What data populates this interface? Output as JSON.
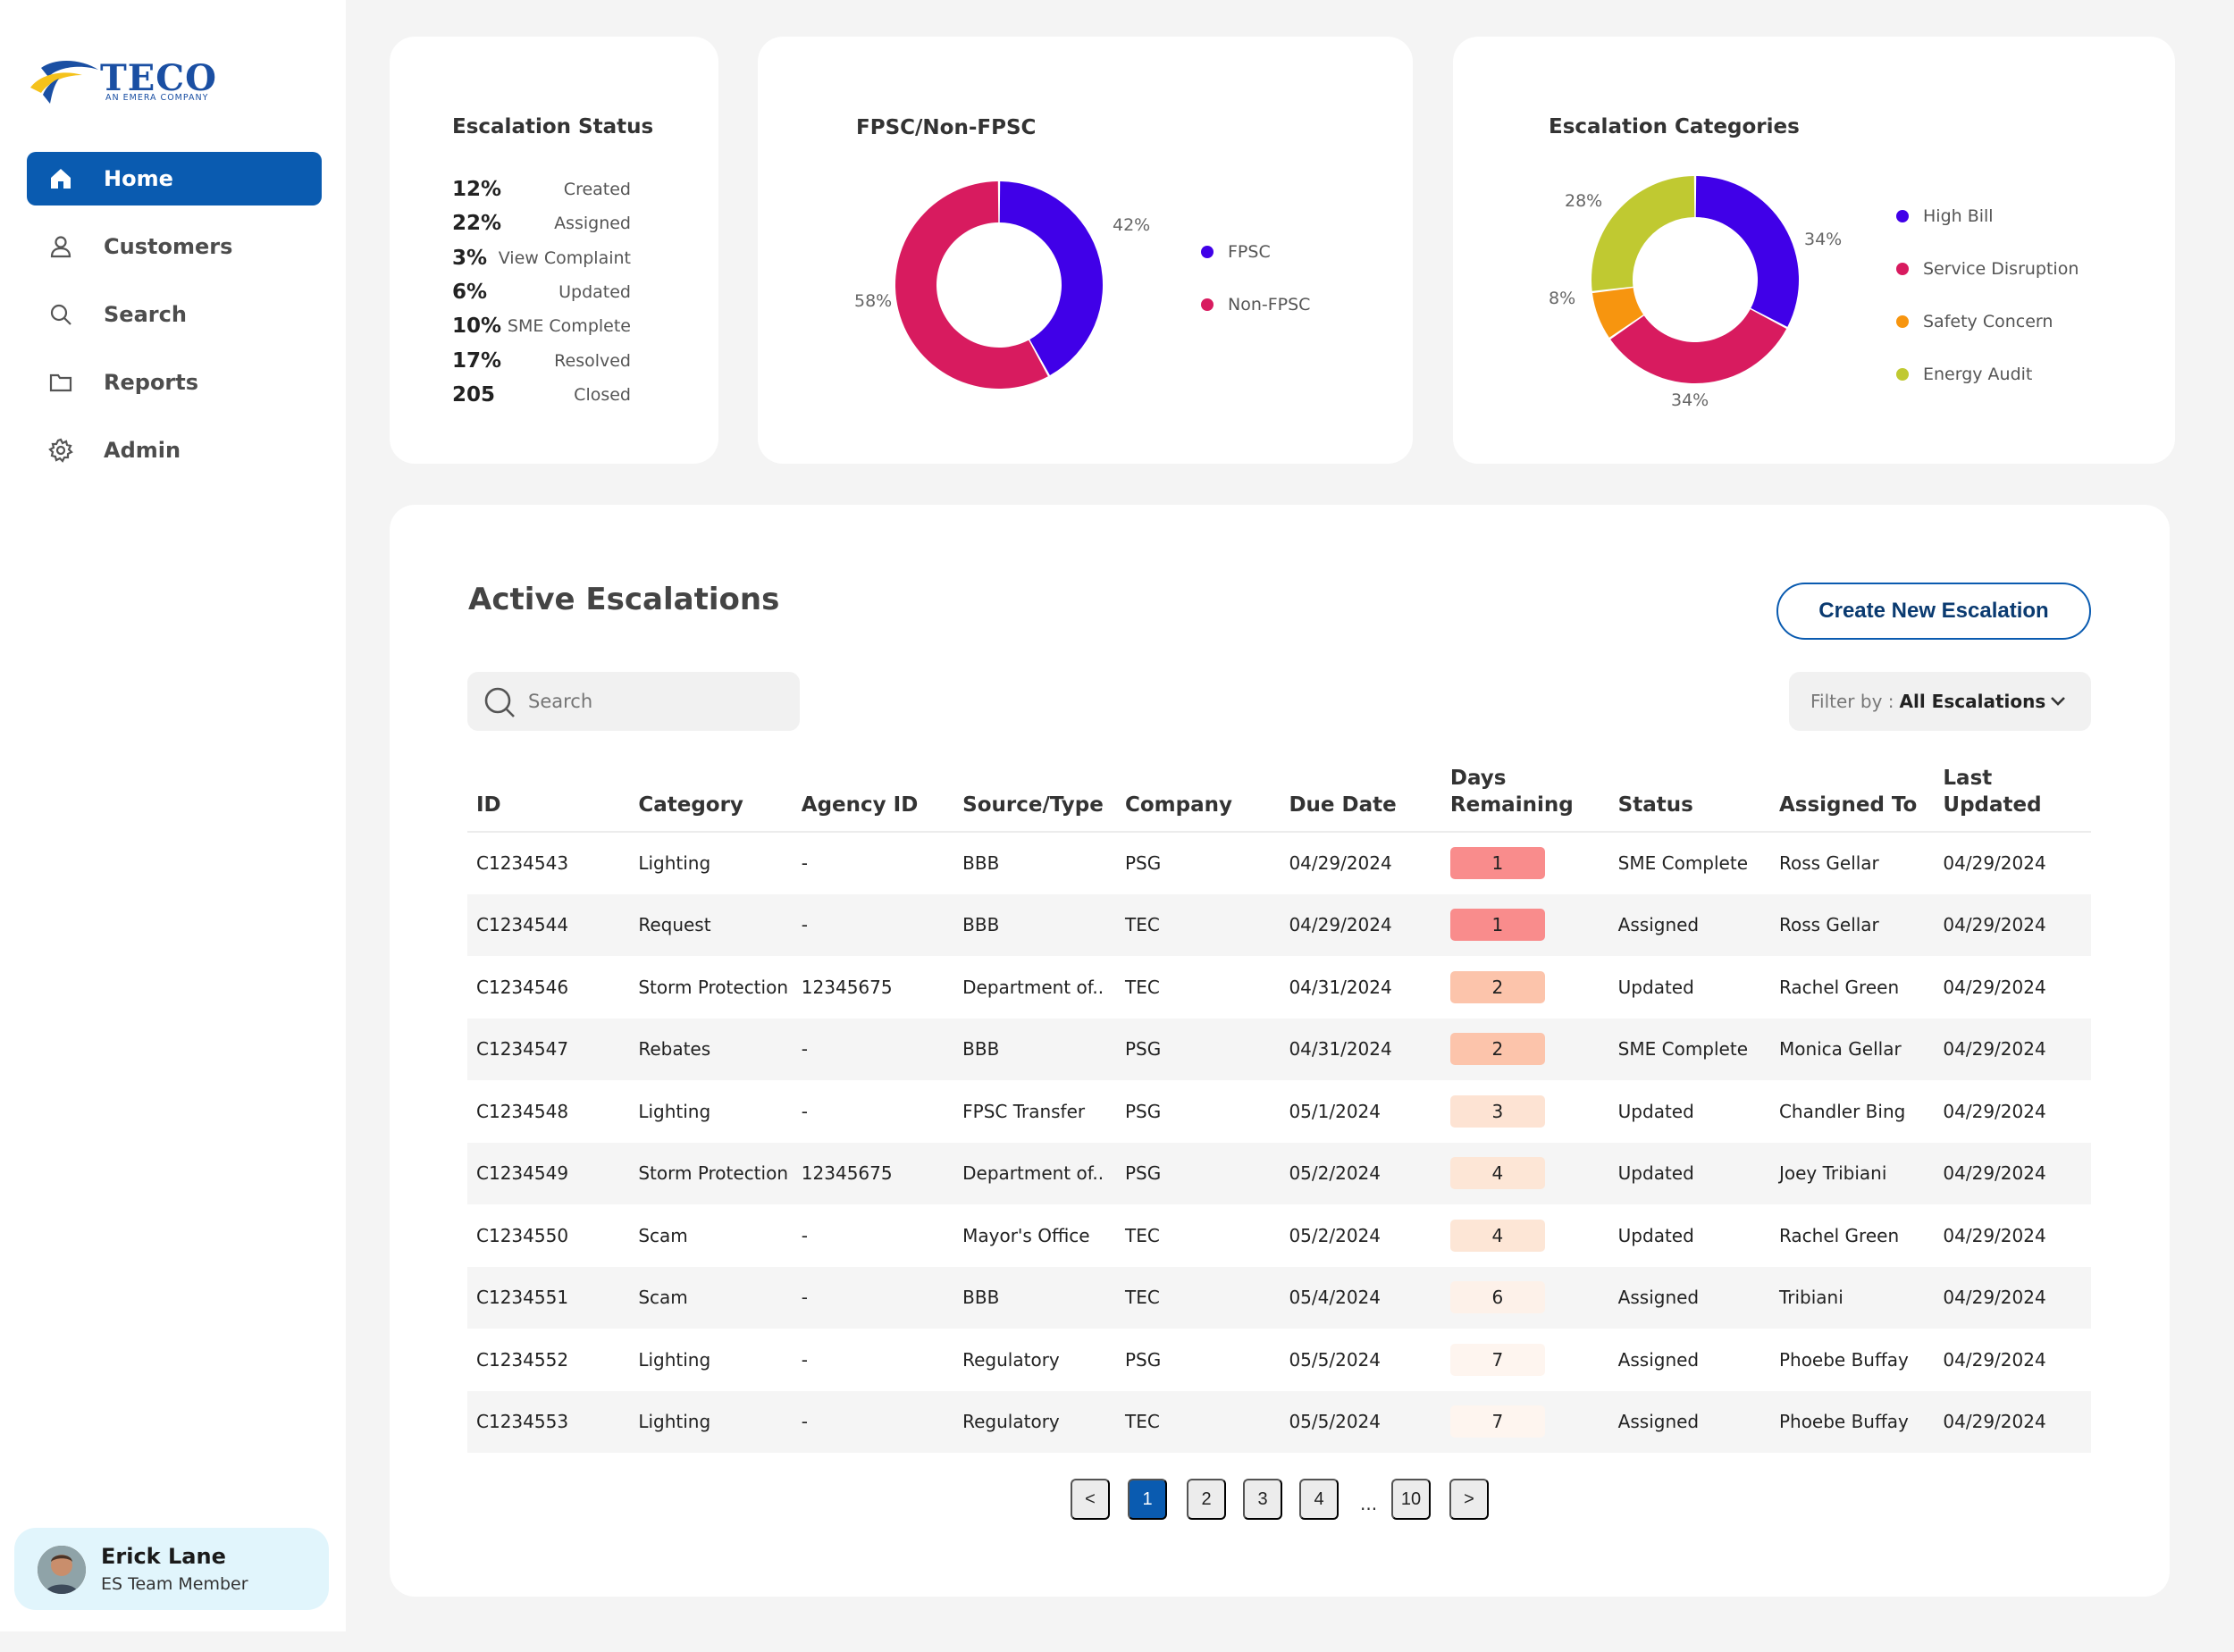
{
  "brand": {
    "name": "TECO",
    "tagline": "AN EMERA COMPANY"
  },
  "nav": [
    {
      "label": "Home",
      "icon": "home-icon",
      "active": true
    },
    {
      "label": "Customers",
      "icon": "user-icon",
      "active": false
    },
    {
      "label": "Search",
      "icon": "search-icon",
      "active": false
    },
    {
      "label": "Reports",
      "icon": "folder-icon",
      "active": false
    },
    {
      "label": "Admin",
      "icon": "gear-icon",
      "active": false
    }
  ],
  "user": {
    "name": "Erick Lane",
    "role": "ES Team Member"
  },
  "escalation_status": {
    "title": "Escalation Status",
    "rows": [
      {
        "value": "12%",
        "label": "Created"
      },
      {
        "value": "22%",
        "label": "Assigned"
      },
      {
        "value": "3%",
        "label": "View Complaint"
      },
      {
        "value": "6%",
        "label": "Updated"
      },
      {
        "value": "10%",
        "label": "SME Complete"
      },
      {
        "value": "17%",
        "label": "Resolved"
      },
      {
        "value": "205",
        "label": "Closed"
      }
    ]
  },
  "fpsc_chart": {
    "title": "FPSC/Non-FPSC",
    "slices": [
      {
        "name": "FPSC",
        "value": 42,
        "label": "42%",
        "color": "#4000e8"
      },
      {
        "name": "Non-FPSC",
        "value": 58,
        "label": "58%",
        "color": "#d81b5f"
      }
    ]
  },
  "categories_chart": {
    "title": "Escalation Categories",
    "slices": [
      {
        "name": "High Bill",
        "value": 34,
        "label": "34%",
        "color": "#4000e8"
      },
      {
        "name": "Service Disruption",
        "value": 34,
        "label": "34%",
        "color": "#d81b5f"
      },
      {
        "name": "Safety Concern",
        "value": 8,
        "label": "8%",
        "color": "#f7950f"
      },
      {
        "name": "Energy Audit",
        "value": 28,
        "label": "28%",
        "color": "#c0c931"
      }
    ]
  },
  "chart_data": [
    {
      "type": "pie",
      "title": "FPSC/Non-FPSC",
      "categories": [
        "FPSC",
        "Non-FPSC"
      ],
      "values": [
        42,
        58
      ]
    },
    {
      "type": "pie",
      "title": "Escalation Categories",
      "categories": [
        "High Bill",
        "Service Disruption",
        "Safety Concern",
        "Energy Audit"
      ],
      "values": [
        34,
        34,
        8,
        28
      ]
    }
  ],
  "active": {
    "title": "Active Escalations",
    "create_label": "Create New Escalation",
    "search_placeholder": "Search",
    "filter_label": "Filter by :",
    "filter_value": "All Escalations",
    "columns": [
      "ID",
      "Category",
      "Agency ID",
      "Source/Type",
      "Company",
      "Due Date",
      "Days Remaining",
      "Status",
      "Assigned To",
      "Last Updated"
    ],
    "rows": [
      {
        "id": "C1234543",
        "category": "Lighting",
        "agency": "-",
        "source": "BBB",
        "company": "PSG",
        "due": "04/29/2024",
        "days": "1",
        "days_color": "#f98c8c",
        "status": "SME Complete",
        "assigned": "Ross Gellar",
        "updated": "04/29/2024"
      },
      {
        "id": "C1234544",
        "category": "Request",
        "agency": "-",
        "source": "BBB",
        "company": "TEC",
        "due": "04/29/2024",
        "days": "1",
        "days_color": "#f98c8c",
        "status": "Assigned",
        "assigned": "Ross Gellar",
        "updated": "04/29/2024"
      },
      {
        "id": "C1234546",
        "category": "Storm Protection",
        "agency": "12345675",
        "source": "Department of..",
        "company": "TEC",
        "due": "04/31/2024",
        "days": "2",
        "days_color": "#fcc4ab",
        "status": "Updated",
        "assigned": "Rachel Green",
        "updated": "04/29/2024"
      },
      {
        "id": "C1234547",
        "category": "Rebates",
        "agency": "-",
        "source": "BBB",
        "company": "PSG",
        "due": "04/31/2024",
        "days": "2",
        "days_color": "#fcc4ab",
        "status": "SME Complete",
        "assigned": "Monica Gellar",
        "updated": "04/29/2024"
      },
      {
        "id": "C1234548",
        "category": "Lighting",
        "agency": "-",
        "source": "FPSC Transfer",
        "company": "PSG",
        "due": "05/1/2024",
        "days": "3",
        "days_color": "#fde3d3",
        "status": "Updated",
        "assigned": "Chandler Bing",
        "updated": "04/29/2024"
      },
      {
        "id": "C1234549",
        "category": "Storm Protection",
        "agency": "12345675",
        "source": "Department of..",
        "company": "PSG",
        "due": "05/2/2024",
        "days": "4",
        "days_color": "#fde6d6",
        "status": "Updated",
        "assigned": "Joey Tribiani",
        "updated": "04/29/2024"
      },
      {
        "id": "C1234550",
        "category": "Scam",
        "agency": "-",
        "source": "Mayor's Office",
        "company": "TEC",
        "due": "05/2/2024",
        "days": "4",
        "days_color": "#fde6d6",
        "status": "Updated",
        "assigned": "Rachel Green",
        "updated": "04/29/2024"
      },
      {
        "id": "C1234551",
        "category": "Scam",
        "agency": "-",
        "source": "BBB",
        "company": "TEC",
        "due": "05/4/2024",
        "days": "6",
        "days_color": "#fdf1e9",
        "status": "Assigned",
        "assigned": "Tribiani",
        "updated": "04/29/2024"
      },
      {
        "id": "C1234552",
        "category": "Lighting",
        "agency": "-",
        "source": "Regulatory",
        "company": "PSG",
        "due": "05/5/2024",
        "days": "7",
        "days_color": "#fef5ef",
        "status": "Assigned",
        "assigned": "Phoebe Buffay",
        "updated": "04/29/2024"
      },
      {
        "id": "C1234553",
        "category": "Lighting",
        "agency": "-",
        "source": "Regulatory",
        "company": "TEC",
        "due": "05/5/2024",
        "days": "7",
        "days_color": "#fef5ef",
        "status": "Assigned",
        "assigned": "Phoebe Buffay",
        "updated": "04/29/2024"
      }
    ]
  },
  "pagination": {
    "prev": "<",
    "pages": [
      "1",
      "2",
      "3",
      "4"
    ],
    "ellipsis": "...",
    "last": "10",
    "next": ">",
    "current": "1"
  }
}
